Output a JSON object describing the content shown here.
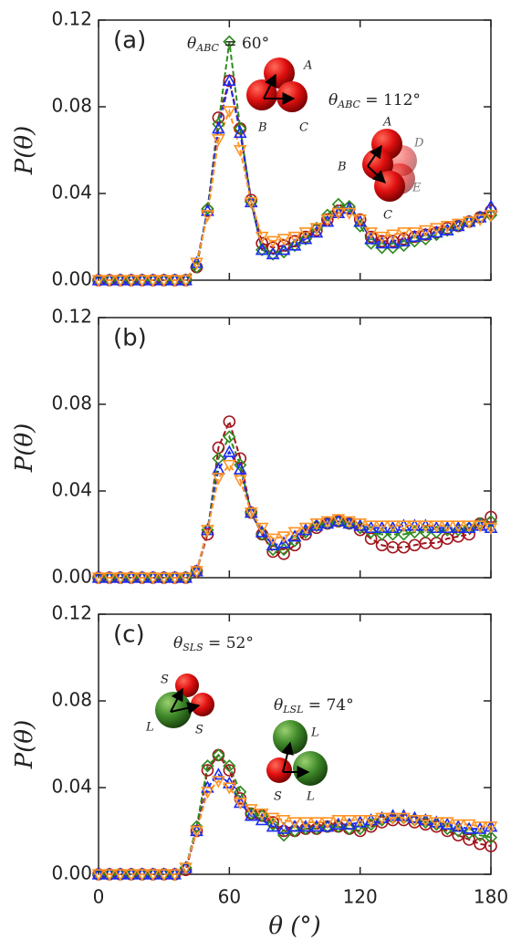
{
  "chart_data": [
    {
      "type": "line",
      "panel_label": "(a)",
      "ylabel": "P(θ)",
      "x": [
        0,
        5,
        10,
        15,
        20,
        25,
        30,
        35,
        40,
        45,
        50,
        55,
        60,
        65,
        70,
        75,
        80,
        85,
        90,
        95,
        100,
        105,
        110,
        115,
        120,
        125,
        130,
        135,
        140,
        145,
        150,
        155,
        160,
        165,
        170,
        175,
        180
      ],
      "xlim": [
        0,
        180
      ],
      "xticks": [
        0,
        60,
        120,
        180
      ],
      "show_xtick_labels": false,
      "ylim": [
        0,
        0.12
      ],
      "yticks": [
        {
          "value": 0,
          "label": "0.00"
        },
        {
          "value": 0.04,
          "label": "0.04"
        },
        {
          "value": 0.08,
          "label": "0.08"
        },
        {
          "value": 0.12,
          "label": "0.12"
        }
      ],
      "annotations": [
        {
          "symbol": "θ",
          "subscript": "ABC",
          "text": " = 60°"
        },
        {
          "symbol": "θ",
          "subscript": "ABC",
          "text": " = 112°"
        }
      ],
      "sphere_labels": [
        "A",
        "B",
        "C",
        "A",
        "B",
        "C",
        "D",
        "E"
      ],
      "series": [
        {
          "color": "#a3141c",
          "marker": "circle",
          "values": [
            0,
            0,
            0,
            0,
            0,
            0,
            0,
            0,
            0,
            0.006,
            0.032,
            0.075,
            0.092,
            0.07,
            0.037,
            0.017,
            0.015,
            0.016,
            0.018,
            0.02,
            0.023,
            0.028,
            0.032,
            0.033,
            0.028,
            0.02,
            0.018,
            0.018,
            0.019,
            0.02,
            0.021,
            0.022,
            0.024,
            0.025,
            0.027,
            0.029,
            0.032
          ]
        },
        {
          "color": "#2e8b1e",
          "marker": "diamond",
          "values": [
            0,
            0,
            0,
            0,
            0,
            0,
            0,
            0,
            0,
            0.006,
            0.033,
            0.072,
            0.11,
            0.07,
            0.036,
            0.014,
            0.012,
            0.013,
            0.016,
            0.019,
            0.024,
            0.03,
            0.035,
            0.034,
            0.025,
            0.017,
            0.015,
            0.015,
            0.016,
            0.018,
            0.019,
            0.021,
            0.023,
            0.025,
            0.027,
            0.029,
            0.03
          ]
        },
        {
          "color": "#1c2cf0",
          "marker": "triangle",
          "values": [
            0,
            0,
            0,
            0,
            0,
            0,
            0,
            0,
            0,
            0.008,
            0.032,
            0.07,
            0.092,
            0.068,
            0.036,
            0.014,
            0.012,
            0.014,
            0.016,
            0.019,
            0.022,
            0.027,
            0.031,
            0.033,
            0.027,
            0.019,
            0.017,
            0.017,
            0.018,
            0.02,
            0.021,
            0.022,
            0.023,
            0.025,
            0.027,
            0.029,
            0.034
          ]
        },
        {
          "color": "#ff9426",
          "marker": "triangle-down",
          "values": [
            0,
            0,
            0,
            0,
            0,
            0,
            0,
            0,
            0,
            0.008,
            0.03,
            0.065,
            0.078,
            0.06,
            0.036,
            0.02,
            0.018,
            0.019,
            0.02,
            0.022,
            0.024,
            0.028,
            0.031,
            0.031,
            0.028,
            0.022,
            0.02,
            0.021,
            0.022,
            0.022,
            0.023,
            0.024,
            0.025,
            0.026,
            0.027,
            0.028,
            0.03
          ]
        }
      ]
    },
    {
      "type": "line",
      "panel_label": "(b)",
      "ylabel": "P(θ)",
      "x": [
        0,
        5,
        10,
        15,
        20,
        25,
        30,
        35,
        40,
        45,
        50,
        55,
        60,
        65,
        70,
        75,
        80,
        85,
        90,
        95,
        100,
        105,
        110,
        115,
        120,
        125,
        130,
        135,
        140,
        145,
        150,
        155,
        160,
        165,
        170,
        175,
        180
      ],
      "xlim": [
        0,
        180
      ],
      "xticks": [
        0,
        60,
        120,
        180
      ],
      "show_xtick_labels": false,
      "ylim": [
        0,
        0.12
      ],
      "yticks": [
        {
          "value": 0,
          "label": "0.00"
        },
        {
          "value": 0.04,
          "label": "0.04"
        },
        {
          "value": 0.08,
          "label": "0.08"
        },
        {
          "value": 0.12,
          "label": "0.12"
        }
      ],
      "series": [
        {
          "color": "#a3141c",
          "marker": "circle",
          "values": [
            0,
            0,
            0,
            0,
            0,
            0,
            0,
            0,
            0,
            0.003,
            0.02,
            0.06,
            0.072,
            0.055,
            0.03,
            0.02,
            0.012,
            0.011,
            0.015,
            0.02,
            0.023,
            0.025,
            0.026,
            0.025,
            0.022,
            0.018,
            0.015,
            0.014,
            0.014,
            0.015,
            0.016,
            0.016,
            0.018,
            0.019,
            0.02,
            0.025,
            0.028
          ]
        },
        {
          "color": "#2e8b1e",
          "marker": "diamond",
          "values": [
            0,
            0,
            0,
            0,
            0,
            0,
            0,
            0,
            0,
            0.003,
            0.022,
            0.055,
            0.065,
            0.052,
            0.03,
            0.02,
            0.013,
            0.013,
            0.017,
            0.021,
            0.024,
            0.025,
            0.026,
            0.025,
            0.023,
            0.021,
            0.02,
            0.02,
            0.02,
            0.021,
            0.021,
            0.021,
            0.022,
            0.022,
            0.023,
            0.025,
            0.026
          ]
        },
        {
          "color": "#1c2cf0",
          "marker": "triangle",
          "values": [
            0,
            0,
            0,
            0,
            0,
            0,
            0,
            0,
            0,
            0.003,
            0.022,
            0.05,
            0.058,
            0.05,
            0.03,
            0.021,
            0.015,
            0.016,
            0.019,
            0.022,
            0.024,
            0.025,
            0.026,
            0.025,
            0.024,
            0.023,
            0.023,
            0.023,
            0.024,
            0.024,
            0.024,
            0.023,
            0.023,
            0.023,
            0.023,
            0.024,
            0.023
          ]
        },
        {
          "color": "#ff9426",
          "marker": "triangle-down",
          "values": [
            0,
            0,
            0,
            0,
            0,
            0,
            0,
            0,
            0,
            0.003,
            0.022,
            0.046,
            0.052,
            0.045,
            0.03,
            0.023,
            0.018,
            0.019,
            0.021,
            0.023,
            0.025,
            0.026,
            0.027,
            0.026,
            0.025,
            0.024,
            0.024,
            0.024,
            0.024,
            0.024,
            0.024,
            0.024,
            0.024,
            0.024,
            0.024,
            0.024,
            0.023
          ]
        }
      ]
    },
    {
      "type": "line",
      "panel_label": "(c)",
      "ylabel": "P(θ)",
      "xlabel": "θ (°)",
      "x": [
        0,
        5,
        10,
        15,
        20,
        25,
        30,
        35,
        40,
        45,
        50,
        55,
        60,
        65,
        70,
        75,
        80,
        85,
        90,
        95,
        100,
        105,
        110,
        115,
        120,
        125,
        130,
        135,
        140,
        145,
        150,
        155,
        160,
        165,
        170,
        175,
        180
      ],
      "xlim": [
        0,
        180
      ],
      "xticks": [
        0,
        60,
        120,
        180
      ],
      "show_xtick_labels": true,
      "ylim": [
        0,
        0.12
      ],
      "yticks": [
        {
          "value": 0,
          "label": "0.00"
        },
        {
          "value": 0.04,
          "label": "0.04"
        },
        {
          "value": 0.08,
          "label": "0.08"
        },
        {
          "value": 0.12,
          "label": "0.12"
        }
      ],
      "annotations": [
        {
          "symbol": "θ",
          "subscript": "SLS",
          "text": " = 52°"
        },
        {
          "symbol": "θ",
          "subscript": "LSL",
          "text": " = 74°"
        }
      ],
      "sphere_labels": [
        "S",
        "L",
        "S",
        "L",
        "S",
        "L"
      ],
      "series": [
        {
          "color": "#a3141c",
          "marker": "circle",
          "values": [
            0,
            0,
            0,
            0,
            0,
            0,
            0,
            0,
            0.002,
            0.02,
            0.048,
            0.055,
            0.048,
            0.035,
            0.028,
            0.027,
            0.024,
            0.02,
            0.02,
            0.021,
            0.021,
            0.022,
            0.022,
            0.021,
            0.02,
            0.022,
            0.024,
            0.025,
            0.025,
            0.024,
            0.023,
            0.022,
            0.02,
            0.018,
            0.016,
            0.014,
            0.013
          ]
        },
        {
          "color": "#2e8b1e",
          "marker": "diamond",
          "values": [
            0,
            0,
            0,
            0,
            0,
            0,
            0,
            0,
            0.003,
            0.022,
            0.05,
            0.055,
            0.05,
            0.038,
            0.028,
            0.027,
            0.023,
            0.018,
            0.02,
            0.021,
            0.021,
            0.022,
            0.022,
            0.021,
            0.021,
            0.023,
            0.025,
            0.026,
            0.026,
            0.025,
            0.024,
            0.023,
            0.021,
            0.02,
            0.019,
            0.018,
            0.017
          ]
        },
        {
          "color": "#1c2cf0",
          "marker": "triangle",
          "values": [
            0,
            0,
            0,
            0,
            0,
            0,
            0,
            0,
            0.003,
            0.02,
            0.04,
            0.046,
            0.042,
            0.033,
            0.027,
            0.025,
            0.022,
            0.021,
            0.022,
            0.022,
            0.022,
            0.022,
            0.023,
            0.023,
            0.024,
            0.025,
            0.026,
            0.027,
            0.027,
            0.026,
            0.025,
            0.024,
            0.023,
            0.022,
            0.021,
            0.021,
            0.022
          ]
        },
        {
          "color": "#ff9426",
          "marker": "triangle-down",
          "values": [
            0,
            0,
            0,
            0,
            0,
            0,
            0,
            0,
            0.003,
            0.02,
            0.038,
            0.043,
            0.04,
            0.033,
            0.03,
            0.028,
            0.026,
            0.025,
            0.024,
            0.024,
            0.024,
            0.024,
            0.025,
            0.025,
            0.025,
            0.025,
            0.026,
            0.026,
            0.026,
            0.025,
            0.025,
            0.024,
            0.024,
            0.023,
            0.023,
            0.022,
            0.022
          ]
        }
      ]
    }
  ]
}
